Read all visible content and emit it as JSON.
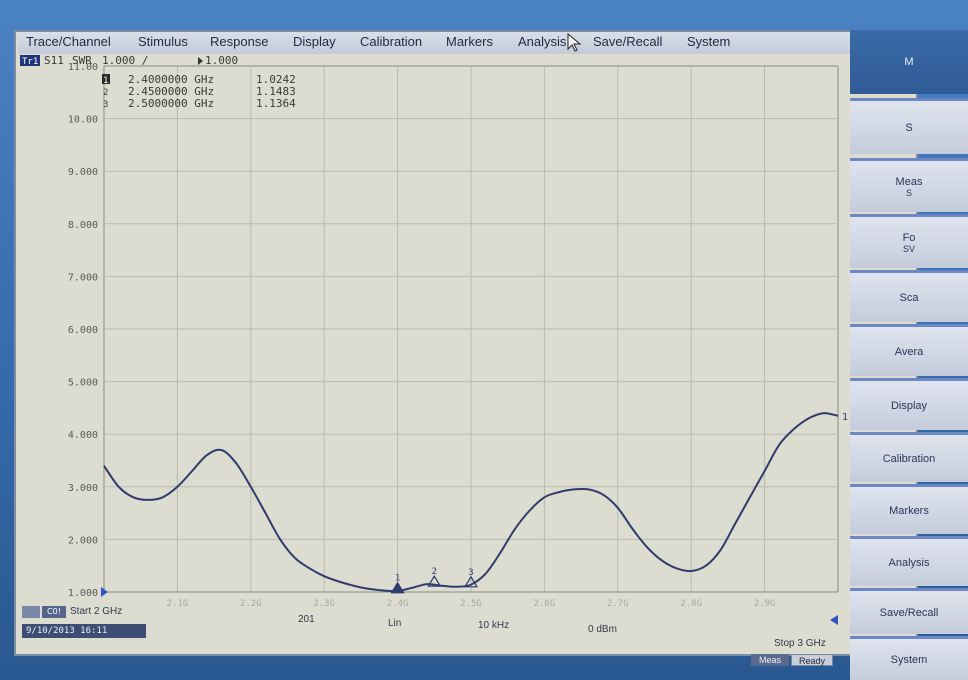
{
  "menu": {
    "items": [
      "Trace/Channel",
      "Stimulus",
      "Response",
      "Display",
      "Calibration",
      "Markers",
      "Analysis",
      "Save/Recall",
      "System"
    ]
  },
  "trace_header": {
    "trace_id": "Tr1",
    "parameter": "S11",
    "format": "SWR",
    "scale": "1.000 /",
    "reference": "1.000"
  },
  "markers": [
    {
      "num": "1",
      "freq": "2.4000000 GHz",
      "value": "1.0242"
    },
    {
      "num": "2",
      "freq": "2.4500000 GHz",
      "value": "1.1483"
    },
    {
      "num": "3",
      "freq": "2.5000000 GHz",
      "value": "1.1364"
    }
  ],
  "status": {
    "start": "Start 2 GHz",
    "points": "201",
    "sweep_type": "Lin",
    "ifbw": "10 kHz",
    "power": "0 dBm",
    "stop": "Stop 3 GHz",
    "datetime": "9/10/2013 16:11",
    "meas": "Meas",
    "ready": "Ready",
    "chip_a": "",
    "chip_b": "C0!"
  },
  "softkeys": [
    "M",
    "S",
    "Meas",
    "Fo",
    "Sca",
    "Avera",
    "Display",
    "Calibration",
    "Markers",
    "Analysis",
    "Save/Recall",
    "System"
  ],
  "softkey_sub": {
    "Meas": "S",
    "Fo": "SV"
  },
  "chart_data": {
    "type": "line",
    "y_ticks": [
      "11.00",
      "10.00",
      "9.000",
      "8.000",
      "7.000",
      "6.000",
      "5.000",
      "4.000",
      "3.000",
      "2.000",
      "1.000"
    ],
    "ylim": [
      1,
      11
    ],
    "xlim": [
      2.0,
      3.0
    ],
    "x_tick_labels": [
      "2.1G",
      "2.2G",
      "2.3G",
      "2.4G",
      "2.5G",
      "2.6G",
      "2.7G",
      "2.8G",
      "2.9G"
    ],
    "x": [
      2.0,
      2.02,
      2.04,
      2.06,
      2.08,
      2.1,
      2.12,
      2.14,
      2.16,
      2.18,
      2.2,
      2.22,
      2.24,
      2.26,
      2.28,
      2.3,
      2.32,
      2.34,
      2.36,
      2.38,
      2.4,
      2.42,
      2.44,
      2.46,
      2.48,
      2.5,
      2.52,
      2.54,
      2.56,
      2.58,
      2.6,
      2.62,
      2.64,
      2.66,
      2.68,
      2.7,
      2.72,
      2.74,
      2.76,
      2.78,
      2.8,
      2.82,
      2.84,
      2.86,
      2.88,
      2.9,
      2.92,
      2.94,
      2.96,
      2.98,
      3.0
    ],
    "y": [
      3.4,
      3.0,
      2.8,
      2.75,
      2.8,
      3.0,
      3.3,
      3.6,
      3.7,
      3.45,
      3.0,
      2.5,
      2.0,
      1.65,
      1.45,
      1.3,
      1.2,
      1.12,
      1.06,
      1.03,
      1.02,
      1.08,
      1.15,
      1.12,
      1.1,
      1.14,
      1.35,
      1.75,
      2.2,
      2.55,
      2.8,
      2.9,
      2.95,
      2.95,
      2.85,
      2.6,
      2.2,
      1.85,
      1.6,
      1.45,
      1.4,
      1.5,
      1.8,
      2.3,
      2.8,
      3.3,
      3.8,
      4.1,
      4.3,
      4.4,
      4.35
    ],
    "marker_x": [
      2.4,
      2.45,
      2.5
    ],
    "marker_y": [
      1.0242,
      1.1483,
      1.1364
    ],
    "marker_labels": [
      "1",
      "2",
      "3"
    ],
    "trace_end_label": "1",
    "grid": true
  }
}
